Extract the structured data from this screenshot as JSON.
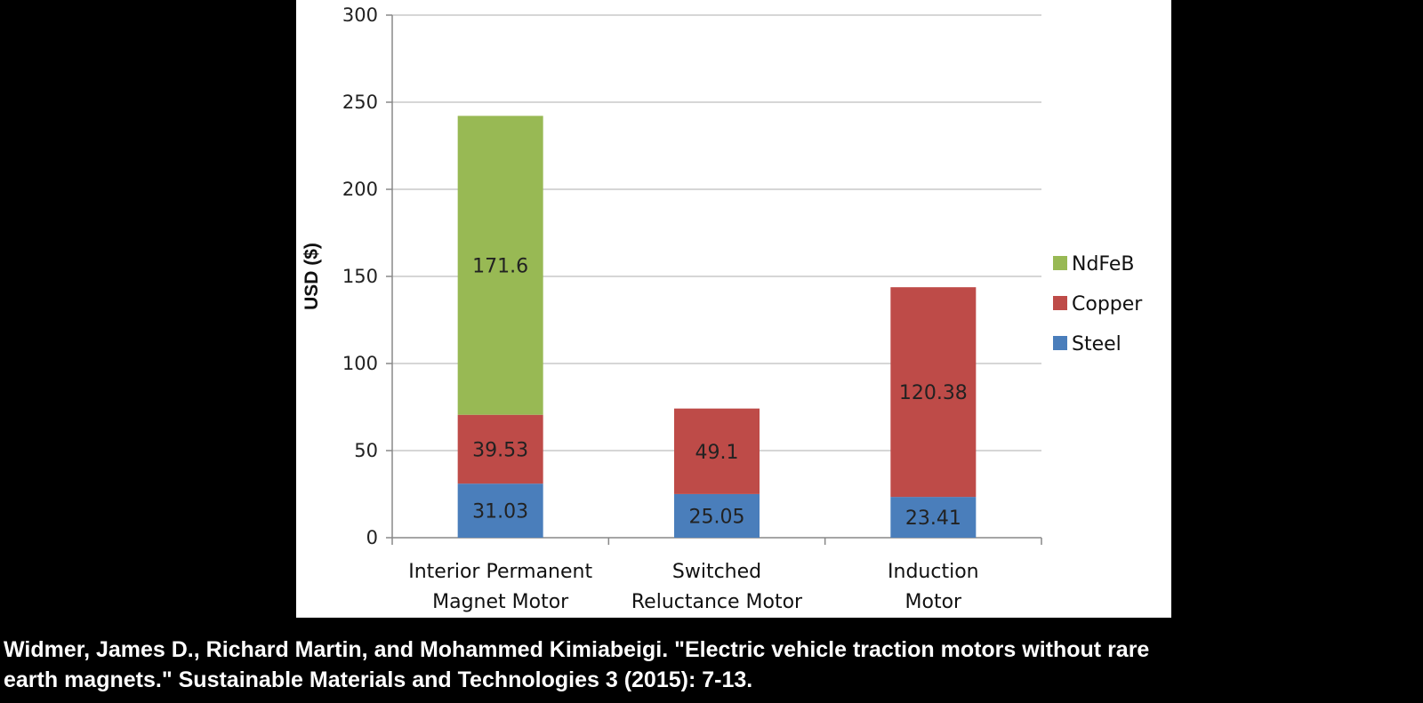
{
  "chart_data": {
    "type": "bar",
    "stacked": true,
    "title": "",
    "xlabel": "",
    "ylabel": "USD ($)",
    "ylim": [
      0,
      300
    ],
    "yticks": [
      0,
      50,
      100,
      150,
      200,
      250,
      300
    ],
    "grid": true,
    "legend_position": "right",
    "categories": [
      [
        "Interior Permanent",
        "Magnet Motor"
      ],
      [
        "Switched",
        "Reluctance Motor"
      ],
      [
        "Induction",
        "Motor"
      ]
    ],
    "series": [
      {
        "name": "Steel",
        "color": "#4a7ebb",
        "values": [
          31.03,
          25.05,
          23.41
        ],
        "labels": [
          "31.03",
          "25.05",
          "23.41"
        ]
      },
      {
        "name": "Copper",
        "color": "#be4b48",
        "values": [
          39.53,
          49.1,
          120.38
        ],
        "labels": [
          "39.53",
          "49.1",
          "120.38"
        ]
      },
      {
        "name": "NdFeB",
        "color": "#98b954",
        "values": [
          171.6,
          0,
          0
        ],
        "labels": [
          "171.6",
          "",
          ""
        ]
      }
    ],
    "legend_order": [
      "NdFeB",
      "Copper",
      "Steel"
    ]
  },
  "citation": {
    "line1": "Widmer, James D., Richard Martin, and Mohammed Kimiabeigi. \"Electric vehicle traction motors without rare",
    "line2": "earth magnets.\" Sustainable Materials and Technologies 3 (2015): 7-13."
  }
}
